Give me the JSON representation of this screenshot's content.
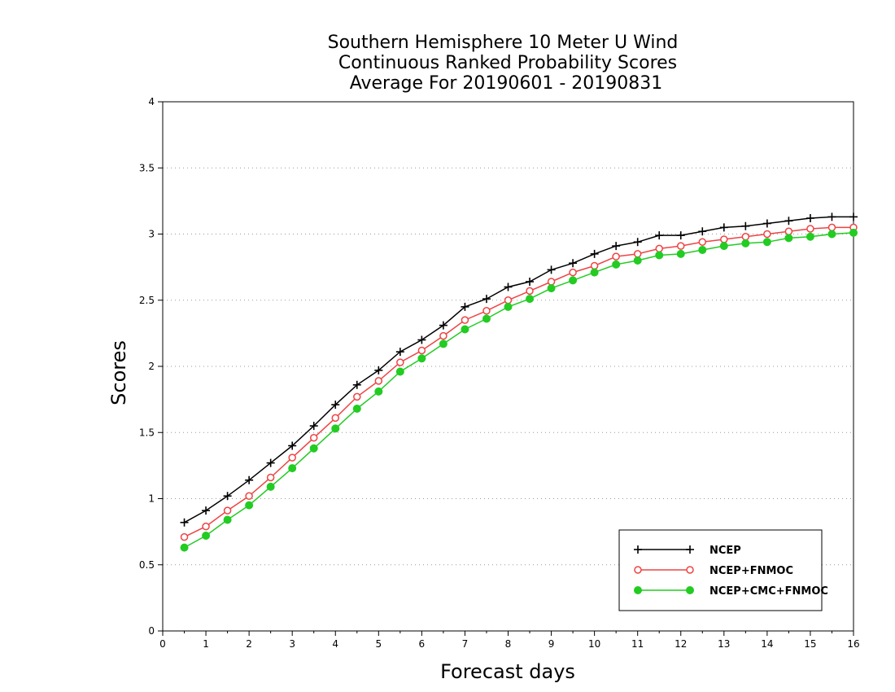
{
  "chart_data": {
    "type": "line",
    "title": [
      "Southern Hemisphere 10 Meter U Wind",
      "Continuous Ranked Probability Scores",
      "Average For 20190601 - 20190831"
    ],
    "xlabel": "Forecast days",
    "ylabel": "Scores",
    "xlim": [
      0,
      16
    ],
    "ylim": [
      0,
      4
    ],
    "xticks": [
      "0",
      "1",
      "2",
      "3",
      "4",
      "5",
      "6",
      "7",
      "8",
      "9",
      "10",
      "11",
      "12",
      "13",
      "14",
      "15",
      "16"
    ],
    "yticks": [
      "0",
      "0.5",
      "1",
      "1.5",
      "2",
      "2.5",
      "3",
      "3.5",
      "4"
    ],
    "grid": "horizontal dotted",
    "legend_position": "bottom-right",
    "x": [
      0.5,
      1,
      1.5,
      2,
      2.5,
      3,
      3.5,
      4,
      4.5,
      5,
      5.5,
      6,
      6.5,
      7,
      7.5,
      8,
      8.5,
      9,
      9.5,
      10,
      10.5,
      11,
      11.5,
      12,
      12.5,
      13,
      13.5,
      14,
      14.5,
      15,
      15.5,
      16
    ],
    "series": [
      {
        "name": "NCEP",
        "color": "#000000",
        "marker": "plus",
        "values": [
          0.82,
          0.91,
          1.02,
          1.14,
          1.27,
          1.4,
          1.55,
          1.71,
          1.86,
          1.97,
          2.11,
          2.2,
          2.31,
          2.45,
          2.51,
          2.6,
          2.64,
          2.73,
          2.78,
          2.85,
          2.91,
          2.94,
          2.99,
          2.99,
          3.02,
          3.05,
          3.06,
          3.08,
          3.1,
          3.12,
          3.13,
          3.13
        ]
      },
      {
        "name": "NCEP+FNMOC",
        "color": "#ee4444",
        "marker": "open-circle",
        "values": [
          0.71,
          0.79,
          0.91,
          1.02,
          1.16,
          1.31,
          1.46,
          1.61,
          1.77,
          1.89,
          2.03,
          2.12,
          2.23,
          2.35,
          2.42,
          2.5,
          2.57,
          2.64,
          2.71,
          2.76,
          2.83,
          2.85,
          2.89,
          2.91,
          2.94,
          2.96,
          2.98,
          3.0,
          3.02,
          3.04,
          3.05,
          3.05
        ]
      },
      {
        "name": "NCEP+CMC+FNMOC",
        "color": "#22cc22",
        "marker": "filled-circle",
        "values": [
          0.63,
          0.72,
          0.84,
          0.95,
          1.09,
          1.23,
          1.38,
          1.53,
          1.68,
          1.81,
          1.96,
          2.06,
          2.17,
          2.28,
          2.36,
          2.45,
          2.51,
          2.59,
          2.65,
          2.71,
          2.77,
          2.8,
          2.84,
          2.85,
          2.88,
          2.91,
          2.93,
          2.94,
          2.97,
          2.98,
          3.0,
          3.01
        ]
      }
    ]
  }
}
